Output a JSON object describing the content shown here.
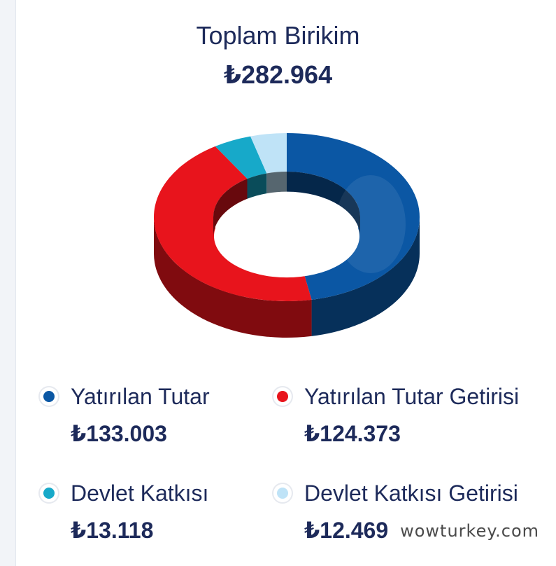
{
  "summary": {
    "title": "Toplam Birikim",
    "total": "₺282.964"
  },
  "chart_data": {
    "type": "pie",
    "style": "3d-donut",
    "currency": "₺",
    "series": [
      {
        "name": "Yatırılan Tutar",
        "value": 133003,
        "display": "₺133.003",
        "color": "#0b57a4"
      },
      {
        "name": "Yatırılan Tutar Getirisi",
        "value": 124373,
        "display": "₺124.373",
        "color": "#e8141c"
      },
      {
        "name": "Devlet Katkısı",
        "value": 13118,
        "display": "₺13.118",
        "color": "#17a9c9"
      },
      {
        "name": "Devlet Katkısı Getirisi",
        "value": 12469,
        "display": "₺12.469",
        "color": "#bfe3f7"
      }
    ],
    "total": 282964,
    "legend_placement": "bottom"
  },
  "watermark": "wowturkey.com"
}
